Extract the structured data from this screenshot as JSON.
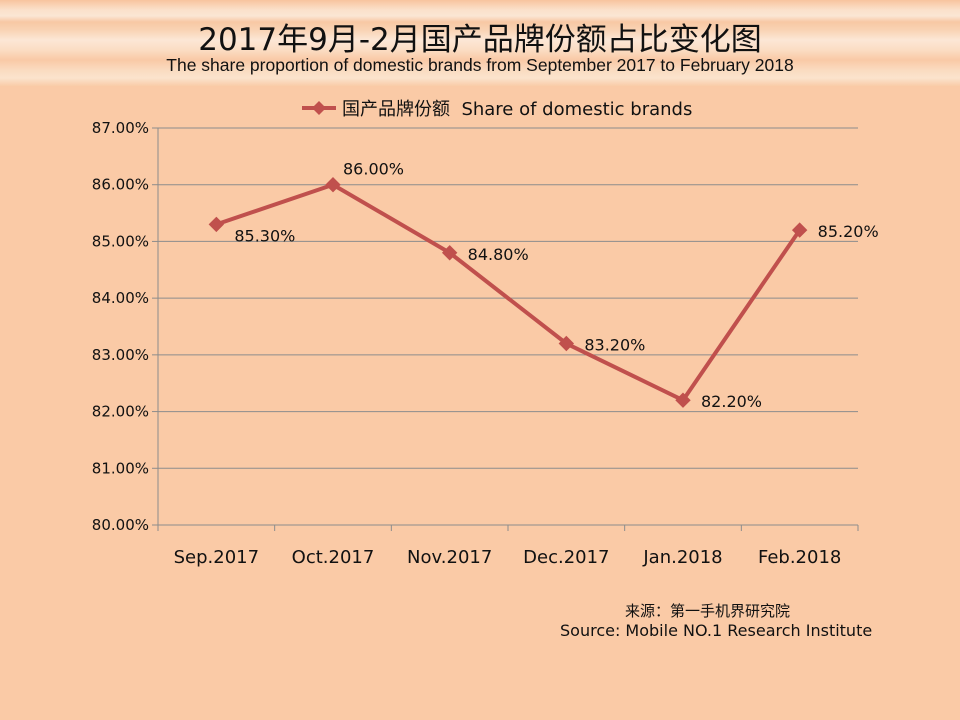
{
  "title": "2017年9月-2月国产品牌份额占比变化图",
  "subtitle": "The share proportion of domestic brands from September 2017 to February 2018",
  "source_cn": "来源：第一手机界研究院",
  "source_en": "Source: Mobile NO.1 Research Institute",
  "colors": {
    "background": "#FACAA6",
    "series": "#C0504D",
    "gridline": "#8C8C8C",
    "text": "#111111"
  },
  "chart_data": {
    "type": "line",
    "categories": [
      "Sep.2017",
      "Oct.2017",
      "Nov.2017",
      "Dec.2017",
      "Jan.2018",
      "Feb.2018"
    ],
    "series": [
      {
        "name": "国产品牌份额  Share of domestic brands",
        "values": [
          85.3,
          86.0,
          84.8,
          83.2,
          82.2,
          85.2
        ],
        "labels": [
          "85.30%",
          "86.00%",
          "84.80%",
          "83.20%",
          "82.20%",
          "85.20%"
        ],
        "marker": "diamond"
      }
    ],
    "ylim": [
      80,
      87
    ],
    "ytick_step": 1,
    "ytick_labels": [
      "80.00%",
      "81.00%",
      "82.00%",
      "83.00%",
      "84.00%",
      "85.00%",
      "86.00%",
      "87.00%"
    ],
    "grid": true,
    "legend_position": "top"
  }
}
